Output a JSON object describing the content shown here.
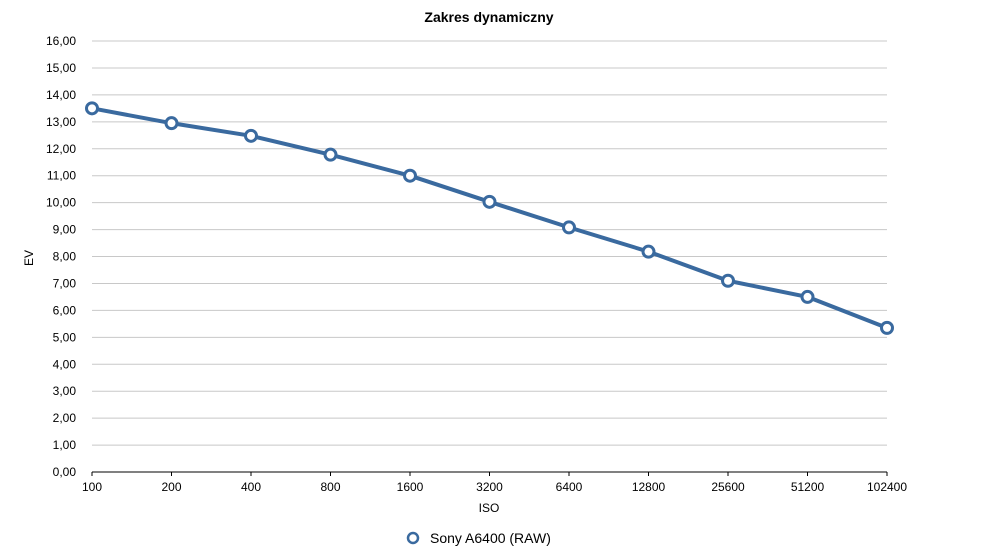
{
  "chart_data": {
    "type": "line",
    "title": "Zakres dynamiczny",
    "xlabel": "ISO",
    "ylabel": "EV",
    "categories": [
      "100",
      "200",
      "400",
      "800",
      "1600",
      "3200",
      "6400",
      "12800",
      "25600",
      "51200",
      "102400"
    ],
    "series": [
      {
        "name": "Sony A6400 (RAW)",
        "values": [
          13.5,
          12.95,
          12.48,
          11.78,
          11.0,
          10.03,
          9.08,
          8.18,
          7.1,
          6.5,
          5.35
        ],
        "color": "#3a6a9f"
      }
    ],
    "ylim": [
      0,
      16
    ],
    "ytick_labels": [
      "0,00",
      "1,00",
      "2,00",
      "3,00",
      "4,00",
      "5,00",
      "6,00",
      "7,00",
      "8,00",
      "9,00",
      "10,00",
      "11,00",
      "12,00",
      "13,00",
      "14,00",
      "15,00",
      "16,00"
    ],
    "grid": true,
    "legend_position": "bottom-center"
  }
}
